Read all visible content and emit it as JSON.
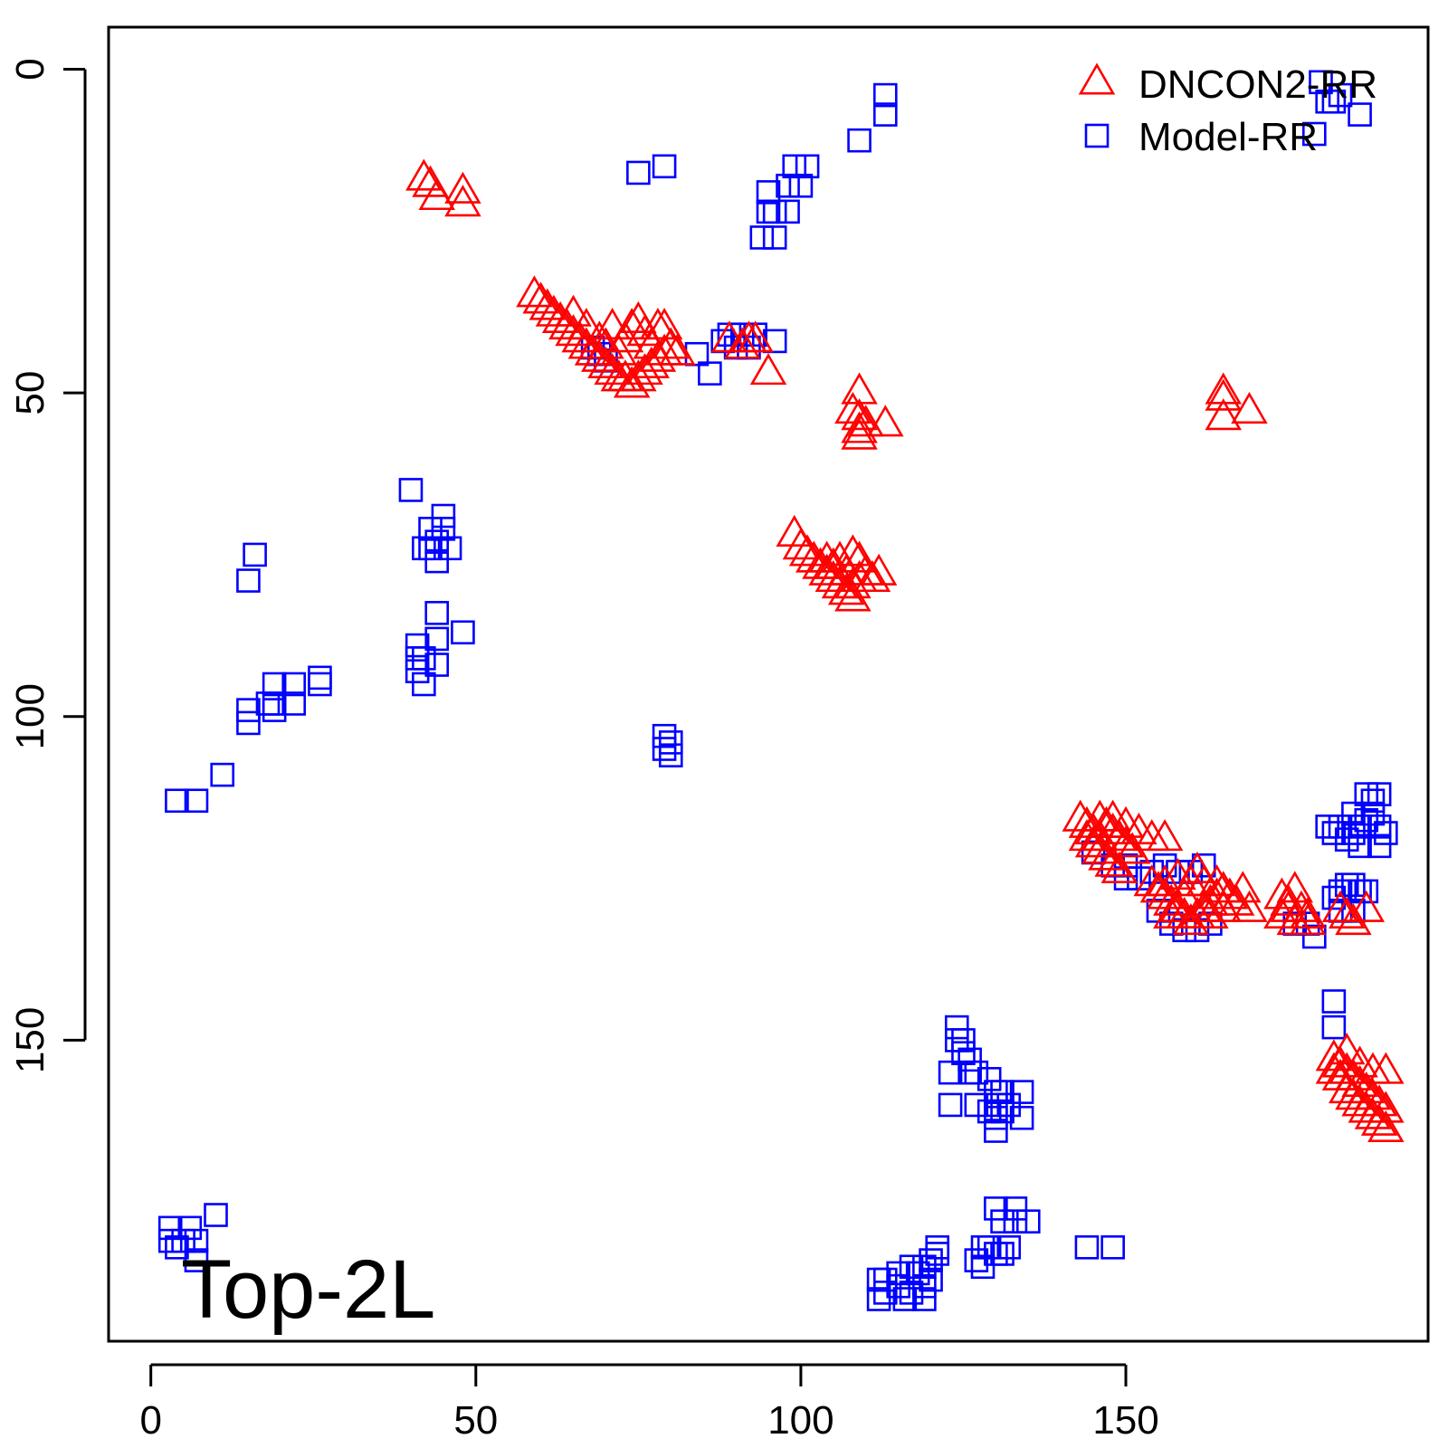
{
  "chart_data": {
    "type": "scatter",
    "title": "",
    "xlabel": "",
    "ylabel": "",
    "xlim": [
      -6.5,
      196.5
    ],
    "ylim": [
      -6.5,
      196.5
    ],
    "y_reversed": true,
    "x_ticks": [
      0,
      50,
      100,
      150
    ],
    "y_ticks": [
      0,
      50,
      100,
      150
    ],
    "x_tick_labels": [
      "0",
      "50",
      "100",
      "150"
    ],
    "y_tick_labels": [
      "0",
      "50",
      "100",
      "150"
    ],
    "grid": false,
    "legend_position": "top-right",
    "annotation": "Top-2L",
    "series": [
      {
        "name": "DNCON2-RR",
        "marker": "triangle",
        "color": "#FF0000",
        "points": [
          [
            42,
            17
          ],
          [
            43,
            18
          ],
          [
            44,
            20
          ],
          [
            48,
            19
          ],
          [
            48,
            21
          ],
          [
            59,
            35
          ],
          [
            60,
            36
          ],
          [
            61,
            37
          ],
          [
            62,
            38
          ],
          [
            63,
            39
          ],
          [
            64,
            40
          ],
          [
            65,
            41
          ],
          [
            66,
            42
          ],
          [
            67,
            43
          ],
          [
            68,
            44
          ],
          [
            69,
            45
          ],
          [
            70,
            46
          ],
          [
            71,
            47
          ],
          [
            72,
            48
          ],
          [
            73,
            48
          ],
          [
            74,
            49
          ],
          [
            75,
            48
          ],
          [
            76,
            47
          ],
          [
            77,
            46
          ],
          [
            78,
            45
          ],
          [
            79,
            44
          ],
          [
            80,
            43
          ],
          [
            81,
            44
          ],
          [
            65,
            38
          ],
          [
            67,
            40
          ],
          [
            69,
            42
          ],
          [
            71,
            40
          ],
          [
            73,
            42
          ],
          [
            74,
            40
          ],
          [
            75,
            39
          ],
          [
            76,
            41
          ],
          [
            78,
            40
          ],
          [
            79,
            40
          ],
          [
            72,
            44
          ],
          [
            70,
            43
          ],
          [
            77,
            43
          ],
          [
            89,
            42
          ],
          [
            91,
            43
          ],
          [
            92,
            42
          ],
          [
            93,
            42
          ],
          [
            95,
            47
          ],
          [
            109,
            50
          ],
          [
            108,
            53
          ],
          [
            109,
            54
          ],
          [
            109,
            56
          ],
          [
            109,
            57
          ],
          [
            110,
            55
          ],
          [
            113,
            55
          ],
          [
            99,
            72
          ],
          [
            100,
            74
          ],
          [
            101,
            75
          ],
          [
            102,
            76
          ],
          [
            103,
            77
          ],
          [
            104,
            78
          ],
          [
            105,
            79
          ],
          [
            106,
            80
          ],
          [
            107,
            81
          ],
          [
            108,
            80
          ],
          [
            109,
            79
          ],
          [
            110,
            78
          ],
          [
            111,
            79
          ],
          [
            112,
            78
          ],
          [
            104,
            76
          ],
          [
            106,
            76
          ],
          [
            108,
            75
          ],
          [
            109,
            76
          ],
          [
            107,
            78
          ],
          [
            105,
            77
          ],
          [
            108,
            82
          ],
          [
            143,
            116
          ],
          [
            144,
            117
          ],
          [
            145,
            118
          ],
          [
            146,
            116
          ],
          [
            147,
            117
          ],
          [
            148,
            118
          ],
          [
            149,
            119
          ],
          [
            150,
            120
          ],
          [
            151,
            121
          ],
          [
            145,
            120
          ],
          [
            146,
            121
          ],
          [
            147,
            122
          ],
          [
            148,
            123
          ],
          [
            149,
            124
          ],
          [
            150,
            117
          ],
          [
            152,
            118
          ],
          [
            154,
            119
          ],
          [
            156,
            119
          ],
          [
            148,
            116
          ],
          [
            144,
            119
          ],
          [
            146,
            119
          ],
          [
            154,
            126
          ],
          [
            155,
            127
          ],
          [
            156,
            128
          ],
          [
            157,
            129
          ],
          [
            158,
            130
          ],
          [
            159,
            131
          ],
          [
            160,
            132
          ],
          [
            161,
            131
          ],
          [
            162,
            130
          ],
          [
            163,
            129
          ],
          [
            164,
            128
          ],
          [
            165,
            127
          ],
          [
            166,
            128
          ],
          [
            167,
            129
          ],
          [
            156,
            126
          ],
          [
            158,
            125
          ],
          [
            160,
            126
          ],
          [
            161,
            124
          ],
          [
            162,
            126
          ],
          [
            164,
            126
          ],
          [
            157,
            131
          ],
          [
            159,
            128
          ],
          [
            163,
            131
          ],
          [
            165,
            130
          ],
          [
            168,
            127
          ],
          [
            169,
            130
          ],
          [
            165,
            50
          ],
          [
            165,
            51
          ],
          [
            165,
            54
          ],
          [
            169,
            53
          ],
          [
            174,
            128
          ],
          [
            175,
            129
          ],
          [
            176,
            127
          ],
          [
            177,
            130
          ],
          [
            178,
            131
          ],
          [
            174,
            131
          ],
          [
            176,
            132
          ],
          [
            178,
            132
          ],
          [
            175,
            130
          ],
          [
            183,
            130
          ],
          [
            184,
            131
          ],
          [
            185,
            132
          ],
          [
            187,
            130
          ],
          [
            182,
            153
          ],
          [
            183,
            154
          ],
          [
            184,
            155
          ],
          [
            185,
            156
          ],
          [
            186,
            157
          ],
          [
            187,
            158
          ],
          [
            188,
            159
          ],
          [
            189,
            160
          ],
          [
            190,
            161
          ],
          [
            184,
            158
          ],
          [
            185,
            159
          ],
          [
            186,
            160
          ],
          [
            187,
            161
          ],
          [
            188,
            162
          ],
          [
            189,
            163
          ],
          [
            190,
            164
          ],
          [
            188,
            155
          ],
          [
            190,
            155
          ],
          [
            183,
            156
          ],
          [
            184,
            152
          ],
          [
            186,
            154
          ],
          [
            182,
            155
          ]
        ]
      },
      {
        "name": "Model-RR",
        "marker": "square",
        "color": "#0000FF",
        "points": [
          [
            113,
            4
          ],
          [
            113,
            7
          ],
          [
            109,
            11
          ],
          [
            75,
            16
          ],
          [
            79,
            15
          ],
          [
            99,
            15
          ],
          [
            101,
            15
          ],
          [
            98,
            18
          ],
          [
            100,
            18
          ],
          [
            95,
            19
          ],
          [
            95,
            22
          ],
          [
            96,
            22
          ],
          [
            98,
            22
          ],
          [
            94,
            26
          ],
          [
            96,
            26
          ],
          [
            68,
            43
          ],
          [
            69,
            44
          ],
          [
            70,
            45
          ],
          [
            84,
            44
          ],
          [
            86,
            47
          ],
          [
            88,
            42
          ],
          [
            90,
            43
          ],
          [
            92,
            43
          ],
          [
            89,
            41
          ],
          [
            91,
            41
          ],
          [
            93,
            41
          ],
          [
            96,
            42
          ],
          [
            40,
            65
          ],
          [
            45,
            69
          ],
          [
            45,
            71
          ],
          [
            43,
            71
          ],
          [
            44,
            73
          ],
          [
            42,
            74
          ],
          [
            43,
            74
          ],
          [
            46,
            74
          ],
          [
            44,
            76
          ],
          [
            16,
            75
          ],
          [
            15,
            79
          ],
          [
            44,
            84
          ],
          [
            48,
            87
          ],
          [
            41,
            89
          ],
          [
            44,
            88
          ],
          [
            41,
            91
          ],
          [
            42,
            91
          ],
          [
            44,
            92
          ],
          [
            41,
            93
          ],
          [
            42,
            95
          ],
          [
            26,
            94
          ],
          [
            26,
            95
          ],
          [
            22,
            95
          ],
          [
            19,
            95
          ],
          [
            19,
            98
          ],
          [
            18,
            98
          ],
          [
            15,
            99
          ],
          [
            15,
            101
          ],
          [
            22,
            98
          ],
          [
            19,
            99
          ],
          [
            11,
            109
          ],
          [
            4,
            113
          ],
          [
            7,
            113
          ],
          [
            79,
            103
          ],
          [
            80,
            104
          ],
          [
            79,
            105
          ],
          [
            80,
            106
          ],
          [
            181,
            117
          ],
          [
            182,
            118
          ],
          [
            183,
            117
          ],
          [
            184,
            119
          ],
          [
            185,
            118
          ],
          [
            186,
            120
          ],
          [
            187,
            116
          ],
          [
            188,
            115
          ],
          [
            189,
            117
          ],
          [
            190,
            118
          ],
          [
            189,
            120
          ],
          [
            188,
            113
          ],
          [
            189,
            112
          ],
          [
            187,
            112
          ],
          [
            185,
            115
          ],
          [
            186,
            117
          ],
          [
            145,
            121
          ],
          [
            148,
            123
          ],
          [
            150,
            125
          ],
          [
            152,
            125
          ],
          [
            154,
            124
          ],
          [
            156,
            123
          ],
          [
            158,
            124
          ],
          [
            160,
            124
          ],
          [
            162,
            123
          ],
          [
            155,
            130
          ],
          [
            157,
            132
          ],
          [
            159,
            133
          ],
          [
            161,
            133
          ],
          [
            163,
            132
          ],
          [
            150,
            123
          ],
          [
            176,
            132
          ],
          [
            178,
            132
          ],
          [
            179,
            134
          ],
          [
            182,
            128
          ],
          [
            183,
            127
          ],
          [
            184,
            126
          ],
          [
            185,
            126
          ],
          [
            186,
            127
          ],
          [
            187,
            127
          ],
          [
            183,
            130
          ],
          [
            185,
            130
          ],
          [
            182,
            144
          ],
          [
            182,
            148
          ],
          [
            180,
            2
          ],
          [
            181,
            5
          ],
          [
            182,
            5
          ],
          [
            183,
            4
          ],
          [
            186,
            7
          ],
          [
            179,
            10
          ],
          [
            124,
            148
          ],
          [
            124,
            150
          ],
          [
            125,
            150
          ],
          [
            125,
            152
          ],
          [
            126,
            153
          ],
          [
            126,
            155
          ],
          [
            123,
            155
          ],
          [
            127,
            155
          ],
          [
            129,
            156
          ],
          [
            130,
            158
          ],
          [
            131,
            158
          ],
          [
            130,
            160
          ],
          [
            132,
            160
          ],
          [
            134,
            158
          ],
          [
            123,
            160
          ],
          [
            127,
            160
          ],
          [
            129,
            161
          ],
          [
            131,
            161
          ],
          [
            130,
            162
          ],
          [
            134,
            162
          ],
          [
            130,
            164
          ],
          [
            130,
            176
          ],
          [
            133,
            176
          ],
          [
            131,
            178
          ],
          [
            133,
            178
          ],
          [
            135,
            178
          ],
          [
            128,
            182
          ],
          [
            129,
            182
          ],
          [
            130,
            183
          ],
          [
            127,
            184
          ],
          [
            128,
            185
          ],
          [
            131,
            183
          ],
          [
            132,
            182
          ],
          [
            144,
            182
          ],
          [
            148,
            182
          ],
          [
            112,
            187
          ],
          [
            113,
            187
          ],
          [
            115,
            186
          ],
          [
            117,
            185
          ],
          [
            118,
            186
          ],
          [
            119,
            185
          ],
          [
            120,
            184
          ],
          [
            121,
            182
          ],
          [
            121,
            183
          ],
          [
            113,
            189
          ],
          [
            115,
            188
          ],
          [
            117,
            189
          ],
          [
            119,
            188
          ],
          [
            120,
            187
          ],
          [
            112,
            190
          ],
          [
            116,
            190
          ],
          [
            119,
            190
          ],
          [
            3,
            179
          ],
          [
            6,
            179
          ],
          [
            10,
            177
          ],
          [
            3,
            181
          ],
          [
            5,
            181
          ],
          [
            7,
            181
          ],
          [
            4,
            182
          ],
          [
            7,
            184
          ]
        ]
      }
    ]
  }
}
